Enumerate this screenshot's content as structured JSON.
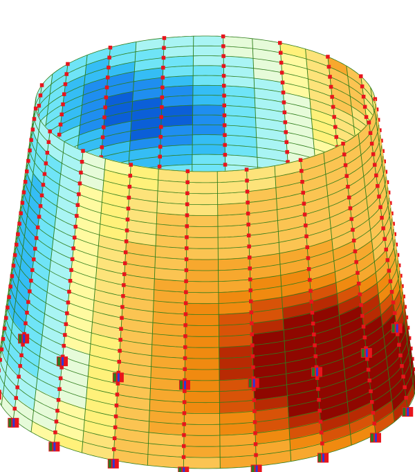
{
  "view": {
    "background": "#ffffff",
    "mesh_line_color": "#2e7d1a",
    "node_color": "#e8141c",
    "support_fill_color": "#e8141c",
    "support_mark_colors": [
      "#2f7a22",
      "#2a3ad8"
    ]
  },
  "model": {
    "type": "truncated-cone-shell",
    "meridian_count": 36,
    "ring_count": 27
  },
  "contour_palette": [
    "#0b5fd8",
    "#1f8ef0",
    "#35bdf5",
    "#6fe4f7",
    "#a9f4f4",
    "#e6fbd9",
    "#fffaa0",
    "#fff17a",
    "#fde37a",
    "#fbc452",
    "#f7a82e",
    "#f08a10",
    "#d85308",
    "#b82a03",
    "#8f0700"
  ]
}
